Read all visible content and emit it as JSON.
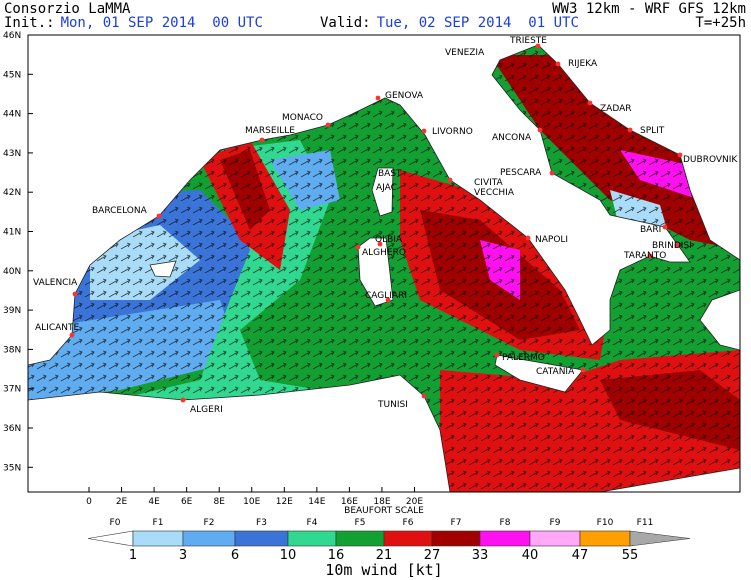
{
  "header": {
    "title": "Consorzio LaMMA",
    "init_label": "Init.:",
    "init_time": "Mon, 01 SEP 2014  00 UTC",
    "valid_label": "Valid:",
    "valid_time": "Tue, 02 SEP 2014  01 UTC",
    "model": "WW3 12km - WRF GFS 12km",
    "lead_time": "T=+25h"
  },
  "map": {
    "lat_labels": [
      "46N",
      "45N",
      "44N",
      "43N",
      "42N",
      "41N",
      "40N",
      "39N",
      "38N",
      "37N",
      "36N",
      "35N"
    ],
    "lon_labels": [
      "0",
      "2E",
      "4E",
      "6E",
      "8E",
      "10E",
      "12E",
      "14E",
      "16E",
      "18E",
      "20E"
    ],
    "cities": [
      "TRIESTE",
      "VENEZIA",
      "RIJEKA",
      "ZADAR",
      "SPLIT",
      "DUBROVNIK",
      "ANCONA",
      "PESCARA",
      "CIVITA",
      "VECCHIA",
      "NAPOLI",
      "BARI",
      "BRINDISI",
      "TARANTO",
      "PALERMO",
      "CATANIA",
      "TUNISI",
      "ALGERI",
      "CAGLIARI",
      "OLBIA",
      "ALGHERO",
      "AJAC",
      "BAST",
      "GENOVA",
      "LIVORNO",
      "MONACO",
      "MARSEILLE",
      "BARCELONA",
      "VALENCIA",
      "ALICANTE"
    ]
  },
  "legend": {
    "title": "BEAUFORT SCALE",
    "classes": [
      {
        "label": "F0",
        "color": "#ffffff"
      },
      {
        "label": "F1",
        "color": "#a8dcf8"
      },
      {
        "label": "F2",
        "color": "#60acf0"
      },
      {
        "label": "F3",
        "color": "#3a74d8"
      },
      {
        "label": "F4",
        "color": "#30d890"
      },
      {
        "label": "F5",
        "color": "#12a032"
      },
      {
        "label": "F6",
        "color": "#e01010"
      },
      {
        "label": "F7",
        "color": "#a00000"
      },
      {
        "label": "F8",
        "color": "#ff10f0"
      },
      {
        "label": "F9",
        "color": "#ffa8f8"
      },
      {
        "label": "F10",
        "color": "#ffa000"
      },
      {
        "label": "F11",
        "color": "#a8a8a8"
      }
    ],
    "speeds": [
      1,
      3,
      6,
      10,
      16,
      21,
      27,
      33,
      40,
      47,
      55
    ],
    "unit_label": "10m wind [kt]"
  }
}
